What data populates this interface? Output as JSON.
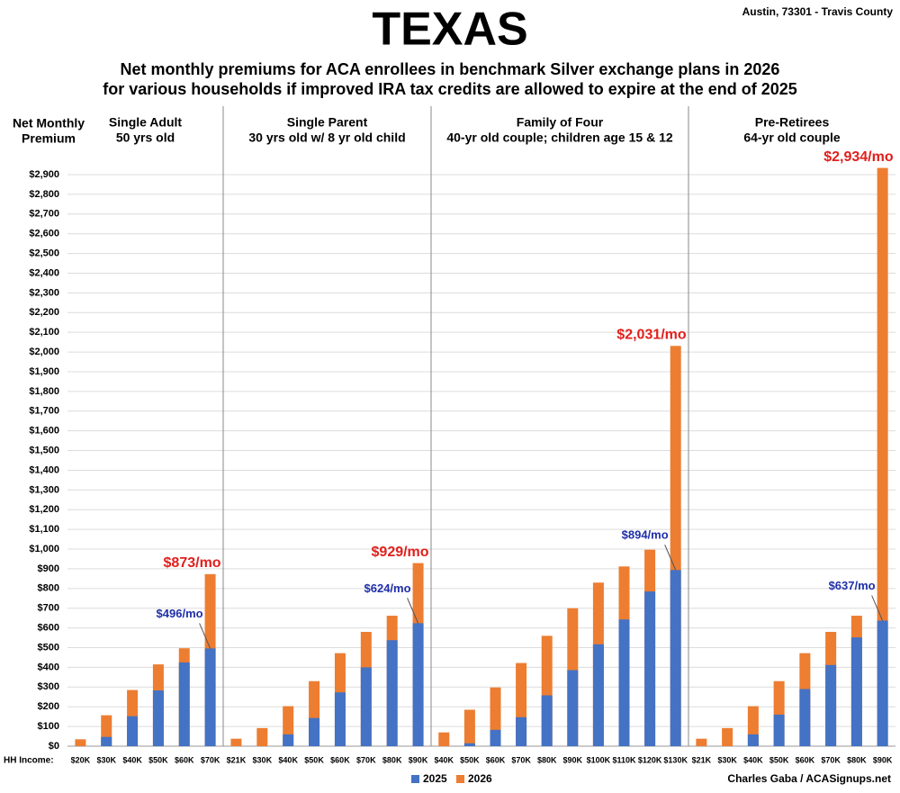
{
  "chart_data": {
    "type": "bar",
    "title": "TEXAS",
    "subtitle": [
      "Net monthly premiums for ACA enrollees in benchmark Silver exchange plans in 2026",
      "for various households if improved IRA tax credits are allowed to expire at the end of 2025"
    ],
    "location": "Austin, 73301 - Travis County",
    "ylabel": [
      "Net Monthly",
      "Premium"
    ],
    "xlabel": "HH Income:",
    "credit": "Charles Gaba / ACASignups.net",
    "ylim": [
      0,
      2900
    ],
    "yticks": [
      {
        "value": 0,
        "label": "$0"
      },
      {
        "value": 100,
        "label": "$100"
      },
      {
        "value": 200,
        "label": "$200"
      },
      {
        "value": 300,
        "label": "$300"
      },
      {
        "value": 400,
        "label": "$400"
      },
      {
        "value": 500,
        "label": "$500"
      },
      {
        "value": 600,
        "label": "$600"
      },
      {
        "value": 700,
        "label": "$700"
      },
      {
        "value": 800,
        "label": "$800"
      },
      {
        "value": 900,
        "label": "$900"
      },
      {
        "value": 1000,
        "label": "$1,000"
      },
      {
        "value": 1100,
        "label": "$1,100"
      },
      {
        "value": 1200,
        "label": "$1,200"
      },
      {
        "value": 1300,
        "label": "$1,300"
      },
      {
        "value": 1400,
        "label": "$1,400"
      },
      {
        "value": 1500,
        "label": "$1,500"
      },
      {
        "value": 1600,
        "label": "$1,600"
      },
      {
        "value": 1700,
        "label": "$1,700"
      },
      {
        "value": 1800,
        "label": "$1,800"
      },
      {
        "value": 1900,
        "label": "$1,900"
      },
      {
        "value": 2000,
        "label": "$2,000"
      },
      {
        "value": 2100,
        "label": "$2,100"
      },
      {
        "value": 2200,
        "label": "$2,200"
      },
      {
        "value": 2300,
        "label": "$2,300"
      },
      {
        "value": 2400,
        "label": "$2,400"
      },
      {
        "value": 2500,
        "label": "$2,500"
      },
      {
        "value": 2600,
        "label": "$2,600"
      },
      {
        "value": 2700,
        "label": "$2,700"
      },
      {
        "value": 2800,
        "label": "$2,800"
      },
      {
        "value": 2900,
        "label": "$2,900"
      }
    ],
    "grid": true,
    "panels": [
      {
        "title": "Single Adult",
        "subtitle": "50 yrs old",
        "categories": [
          "$20K",
          "$30K",
          "$40K",
          "$50K",
          "$60K",
          "$70K"
        ],
        "series": [
          {
            "name": "2026",
            "color": "#ed7d31",
            "values": [
              35,
              157,
              285,
              415,
              497,
              873
            ],
            "value_labels": [
              null,
              null,
              null,
              null,
              null,
              "$873/mo"
            ]
          },
          {
            "name": "2025",
            "color": "#4472c4",
            "values": [
              0,
              47,
              152,
              283,
              425,
              496
            ],
            "value_labels": [
              null,
              null,
              null,
              null,
              null,
              "$496/mo"
            ]
          }
        ]
      },
      {
        "title": "Single Parent",
        "subtitle": "30 yrs old w/ 8 yr old child",
        "categories": [
          "$21K",
          "$30K",
          "$40K",
          "$50K",
          "$60K",
          "$70K",
          "$80K",
          "$90K"
        ],
        "series": [
          {
            "name": "2026",
            "color": "#ed7d31",
            "values": [
              38,
              92,
              203,
              330,
              472,
              580,
              662,
              929
            ],
            "value_labels": [
              null,
              null,
              null,
              null,
              null,
              null,
              null,
              "$929/mo"
            ]
          },
          {
            "name": "2025",
            "color": "#4472c4",
            "values": [
              0,
              0,
              60,
              143,
              273,
              400,
              538,
              624
            ],
            "value_labels": [
              null,
              null,
              null,
              null,
              null,
              null,
              null,
              "$624/mo"
            ]
          }
        ]
      },
      {
        "title": "Family of Four",
        "subtitle": "40-yr old couple; children age 15 & 12",
        "categories": [
          "$40K",
          "$50K",
          "$60K",
          "$70K",
          "$80K",
          "$90K",
          "$100K",
          "$110K",
          "$120K",
          "$130K"
        ],
        "series": [
          {
            "name": "2026",
            "color": "#ed7d31",
            "values": [
              70,
              185,
              298,
              422,
              560,
              700,
              830,
              912,
              997,
              2031
            ],
            "value_labels": [
              null,
              null,
              null,
              null,
              null,
              null,
              null,
              null,
              null,
              "$2,031/mo"
            ]
          },
          {
            "name": "2025",
            "color": "#4472c4",
            "values": [
              0,
              15,
              83,
              147,
              258,
              386,
              517,
              643,
              785,
              894
            ],
            "value_labels": [
              null,
              null,
              null,
              null,
              null,
              null,
              null,
              null,
              null,
              "$894/mo"
            ]
          }
        ]
      },
      {
        "title": "Pre-Retirees",
        "subtitle": "64-yr old couple",
        "categories": [
          "$21K",
          "$30K",
          "$40K",
          "$50K",
          "$60K",
          "$70K",
          "$80K",
          "$90K"
        ],
        "series": [
          {
            "name": "2026",
            "color": "#ed7d31",
            "values": [
              38,
              92,
              203,
              330,
              472,
              580,
              662,
              2934
            ],
            "value_labels": [
              null,
              null,
              null,
              null,
              null,
              null,
              null,
              "$2,934/mo"
            ]
          },
          {
            "name": "2025",
            "color": "#4472c4",
            "values": [
              0,
              0,
              60,
              160,
              290,
              412,
              552,
              637
            ],
            "value_labels": [
              null,
              null,
              null,
              null,
              null,
              null,
              null,
              "$637/mo"
            ]
          }
        ]
      }
    ]
  }
}
